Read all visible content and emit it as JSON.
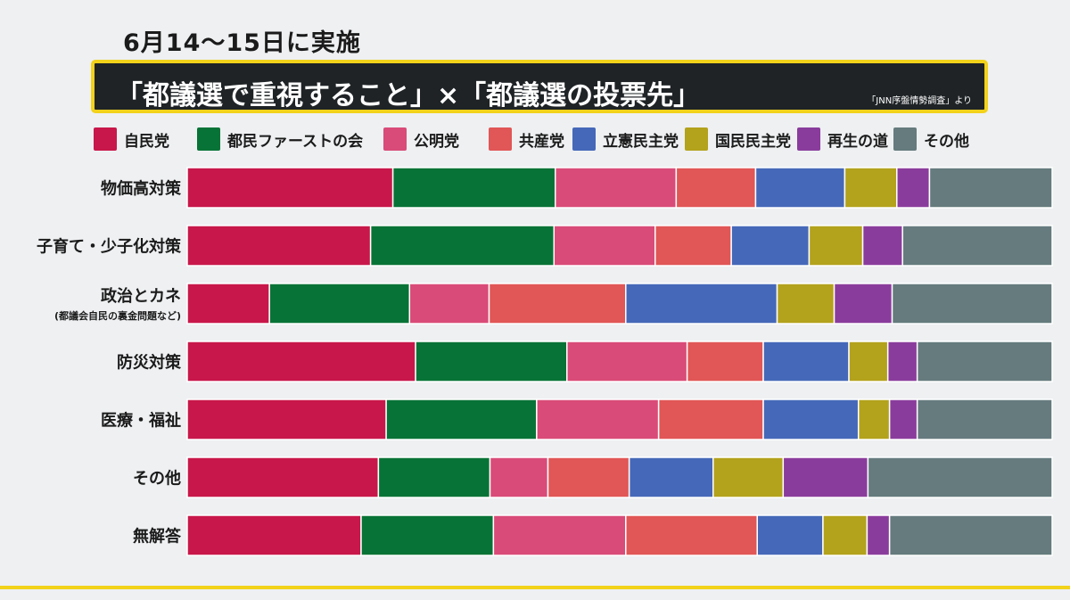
{
  "header": {
    "date_text": "6月14～15日に実施",
    "title": "「都議選で重視すること」×「都議選の投票先」",
    "source": "「JNN序盤情勢調査」より"
  },
  "legend": [
    {
      "label": "自民党",
      "color": "#c8174a"
    },
    {
      "label": "都民ファーストの会",
      "color": "#087336"
    },
    {
      "label": "公明党",
      "color": "#d94b78"
    },
    {
      "label": "共産党",
      "color": "#e15656"
    },
    {
      "label": "立憲民主党",
      "color": "#4568b8"
    },
    {
      "label": "国民民主党",
      "color": "#b3a21c"
    },
    {
      "label": "再生の道",
      "color": "#8a3c9c"
    },
    {
      "label": "その他",
      "color": "#657b7e"
    }
  ],
  "chart_data": {
    "type": "bar",
    "orientation": "horizontal",
    "stacked": true,
    "categories": [
      "物価高対策",
      "子育て・少子化対策",
      "政治とカネ",
      "防災対策",
      "医療・福祉",
      "その他",
      "無解答"
    ],
    "category_sublabels": [
      "",
      "",
      "(都議会自民の裏金問題など)",
      "",
      "",
      "",
      ""
    ],
    "series": [
      {
        "name": "自民党",
        "values": [
          23.3,
          21.2,
          9.5,
          26.4,
          23.0,
          22.1,
          20.1
        ]
      },
      {
        "name": "都民ファーストの会",
        "values": [
          18.4,
          21.2,
          16.2,
          17.5,
          17.4,
          12.9,
          15.3
        ]
      },
      {
        "name": "公明党",
        "values": [
          13.7,
          11.7,
          9.2,
          13.9,
          14.1,
          6.7,
          15.3
        ]
      },
      {
        "name": "共産党",
        "values": [
          9.0,
          8.8,
          15.8,
          8.8,
          12.1,
          9.4,
          15.2
        ]
      },
      {
        "name": "立憲民主党",
        "values": [
          10.1,
          9.0,
          17.5,
          9.9,
          11.0,
          9.7,
          7.6
        ]
      },
      {
        "name": "国民民主党",
        "values": [
          5.9,
          6.2,
          6.6,
          4.5,
          3.6,
          8.1,
          5.1
        ]
      },
      {
        "name": "再生の道",
        "values": [
          3.7,
          4.6,
          6.7,
          3.4,
          3.2,
          9.8,
          2.6
        ]
      },
      {
        "name": "その他",
        "values": [
          13.9,
          17.3,
          18.5,
          15.6,
          15.6,
          21.3,
          18.8
        ]
      }
    ],
    "xlim": [
      0,
      100
    ]
  }
}
